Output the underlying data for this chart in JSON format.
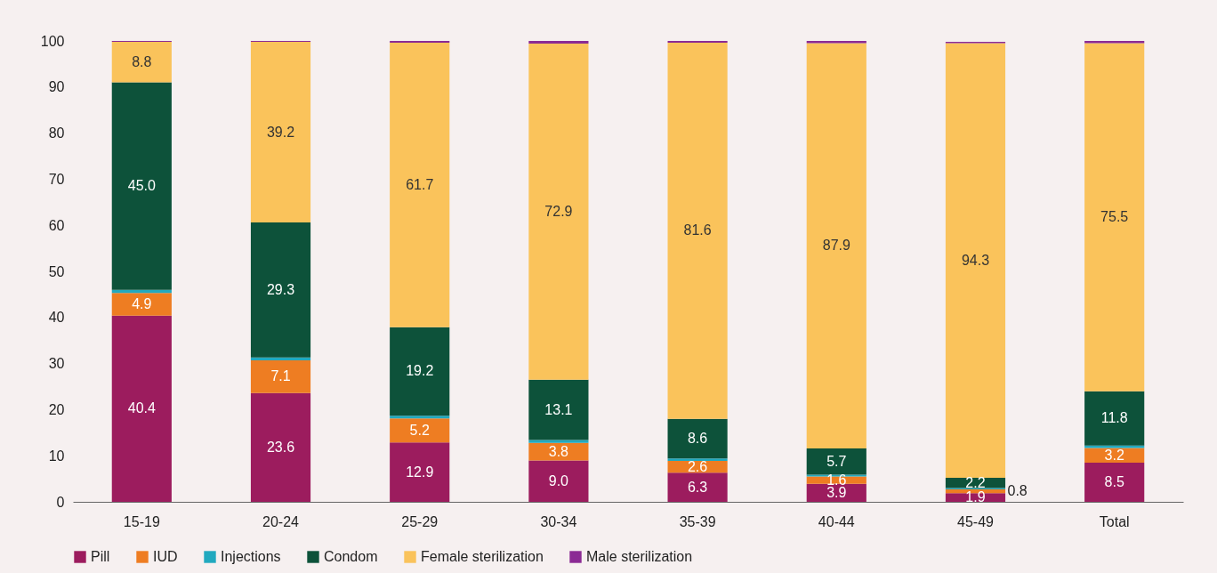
{
  "chart_data": {
    "type": "bar",
    "stacked": true,
    "categories": [
      "15-19",
      "20-24",
      "25-29",
      "30-34",
      "35-39",
      "40-44",
      "45-49",
      "Total"
    ],
    "series": [
      {
        "name": "Pill",
        "color": "#9c1c5e",
        "values": [
          40.4,
          23.6,
          12.9,
          9.0,
          6.3,
          3.9,
          1.9,
          8.5
        ],
        "value_labels": [
          "40.4",
          "23.6",
          "12.9",
          "9.0",
          "6.3",
          "3.9",
          "1.9",
          "8.5"
        ]
      },
      {
        "name": "IUD",
        "color": "#ee7d22",
        "values": [
          4.9,
          7.1,
          5.2,
          3.8,
          2.6,
          1.6,
          0.8,
          3.2
        ],
        "value_labels": [
          "4.9",
          "7.1",
          "5.2",
          "3.8",
          "2.6",
          "1.6",
          "0.8",
          "3.2"
        ]
      },
      {
        "name": "Injections",
        "color": "#21a9bf",
        "values": [
          0.7,
          0.6,
          0.6,
          0.6,
          0.5,
          0.4,
          0.3,
          0.5
        ]
      },
      {
        "name": "Condom",
        "color": "#0d523a",
        "values": [
          45.0,
          29.3,
          19.2,
          13.1,
          8.6,
          5.7,
          2.2,
          11.8
        ],
        "value_labels": [
          "45.0",
          "29.3",
          "19.2",
          "13.1",
          "8.6",
          "5.7",
          "2.2",
          "11.8"
        ]
      },
      {
        "name": "Female sterilization",
        "color": "#fac35b",
        "values": [
          8.8,
          39.2,
          61.7,
          72.9,
          81.6,
          87.9,
          94.3,
          75.5
        ],
        "value_labels": [
          "8.8",
          "39.2",
          "61.7",
          "72.9",
          "81.6",
          "87.9",
          "94.3",
          "75.5"
        ]
      },
      {
        "name": "Male sterilization",
        "color": "#8b2a94",
        "values": [
          0.2,
          0.2,
          0.4,
          0.6,
          0.4,
          0.5,
          0.3,
          0.5
        ]
      }
    ],
    "ylim": [
      0,
      100
    ],
    "yticks": [
      0,
      10,
      20,
      30,
      40,
      50,
      60,
      70,
      80,
      90,
      100
    ],
    "legend": "bottom"
  }
}
